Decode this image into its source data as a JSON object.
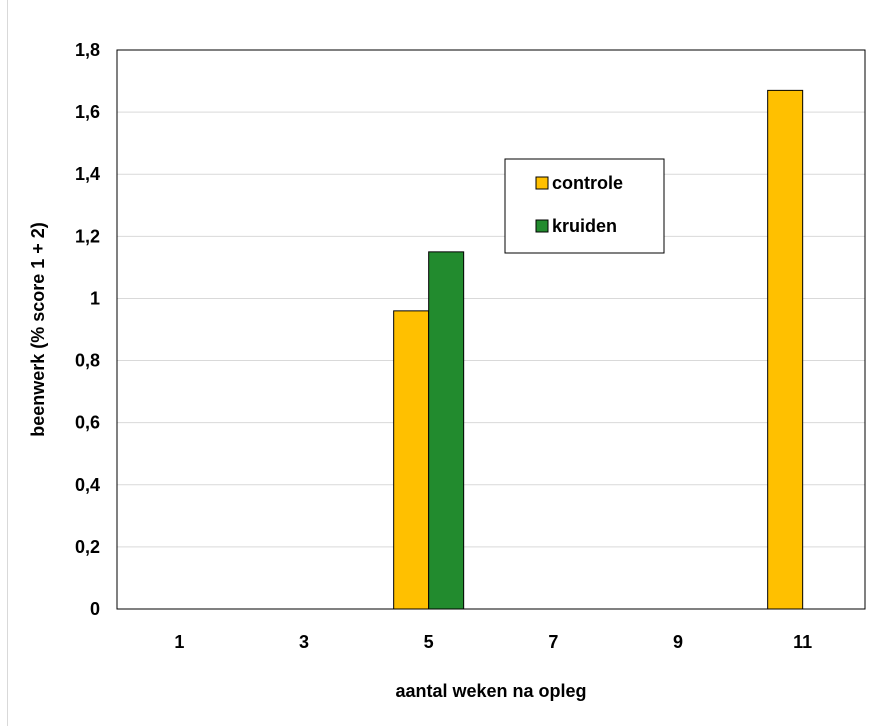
{
  "chart_data": {
    "type": "bar",
    "categories": [
      "1",
      "3",
      "5",
      "7",
      "9",
      "11"
    ],
    "series": [
      {
        "name": "controle",
        "color": "#FFC000",
        "values": [
          0,
          0,
          0.96,
          0,
          0,
          1.67
        ]
      },
      {
        "name": "kruiden",
        "color": "#228B2E",
        "values": [
          0,
          0,
          1.15,
          0,
          0,
          0
        ]
      }
    ],
    "yticks": [
      "0",
      "0,2",
      "0,4",
      "0,6",
      "0,8",
      "1",
      "1,2",
      "1,4",
      "1,6",
      "1,8"
    ],
    "ylim": [
      0,
      1.8
    ],
    "xlabel": "aantal weken na opleg",
    "ylabel": "beenwerk (% score 1 + 2)",
    "legend_position": "upper-center-right",
    "grid": true
  }
}
